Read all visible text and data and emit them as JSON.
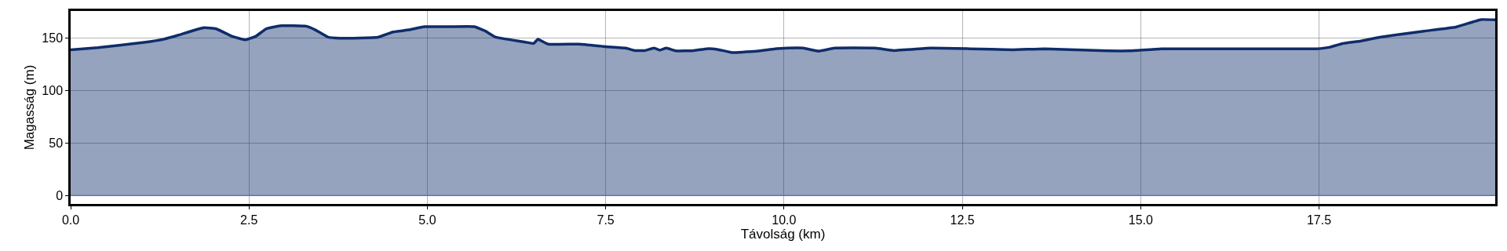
{
  "chart_data": {
    "type": "area",
    "xlabel": "Távolság (km)",
    "ylabel": "Magasság (m)",
    "x": [
      0,
      0.38,
      1.03,
      1.3,
      1.51,
      1.86,
      2.04,
      2.26,
      2.45,
      2.6,
      2.74,
      2.95,
      3.3,
      3.43,
      3.61,
      3.78,
      4.31,
      4.52,
      4.74,
      4.96,
      5.31,
      5.66,
      5.81,
      5.96,
      6.4,
      6.49,
      6.55,
      6.69,
      7.13,
      7.5,
      7.78,
      7.91,
      8.05,
      8.18,
      8.26,
      8.35,
      8.48,
      8.74,
      8.92,
      9.05,
      9.27,
      9.57,
      9.84,
      10.05,
      10.27,
      10.49,
      10.71,
      11.28,
      11.54,
      12.06,
      12.6,
      13.21,
      13.65,
      14.54,
      14.85,
      15.29,
      17.47,
      17.64,
      17.82,
      18.09,
      18.35,
      18.97,
      19.42,
      19.77,
      19.97
    ],
    "series": [
      {
        "color": "#0f2d6b",
        "values": [
          139,
          141,
          146,
          149,
          153,
          160,
          159,
          152,
          148.5,
          152,
          159,
          162,
          161.5,
          158,
          151,
          150,
          151,
          156,
          158,
          161,
          161,
          161,
          157,
          151,
          146,
          145,
          149,
          144.4,
          144.4,
          142,
          140.6,
          138.3,
          138.3,
          140.6,
          138.6,
          140.6,
          138,
          138.3,
          140,
          139.6,
          136.4,
          137.4,
          139.6,
          140.6,
          140.6,
          137.7,
          140.6,
          140.6,
          138.3,
          140.6,
          140,
          139,
          140,
          138,
          138,
          140,
          140,
          141.3,
          144.8,
          147.4,
          151,
          156.8,
          160.7,
          167.8,
          167.5
        ]
      }
    ],
    "xlim": [
      0,
      19.97
    ],
    "ylim": [
      -8,
      176
    ],
    "xticks": [
      {
        "value": 0,
        "label": "0.0"
      },
      {
        "value": 2.5,
        "label": "2.5"
      },
      {
        "value": 5,
        "label": "5.0"
      },
      {
        "value": 7.5,
        "label": "7.5"
      },
      {
        "value": 10,
        "label": "10.0"
      },
      {
        "value": 12.5,
        "label": "12.5"
      },
      {
        "value": 15,
        "label": "15.0"
      },
      {
        "value": 17.5,
        "label": "17.5"
      }
    ],
    "yticks": [
      0,
      50,
      100,
      150
    ],
    "grid": true,
    "ref_lines": [
      {
        "axis": "y",
        "value": 0,
        "color": "#5a78b0"
      }
    ]
  }
}
